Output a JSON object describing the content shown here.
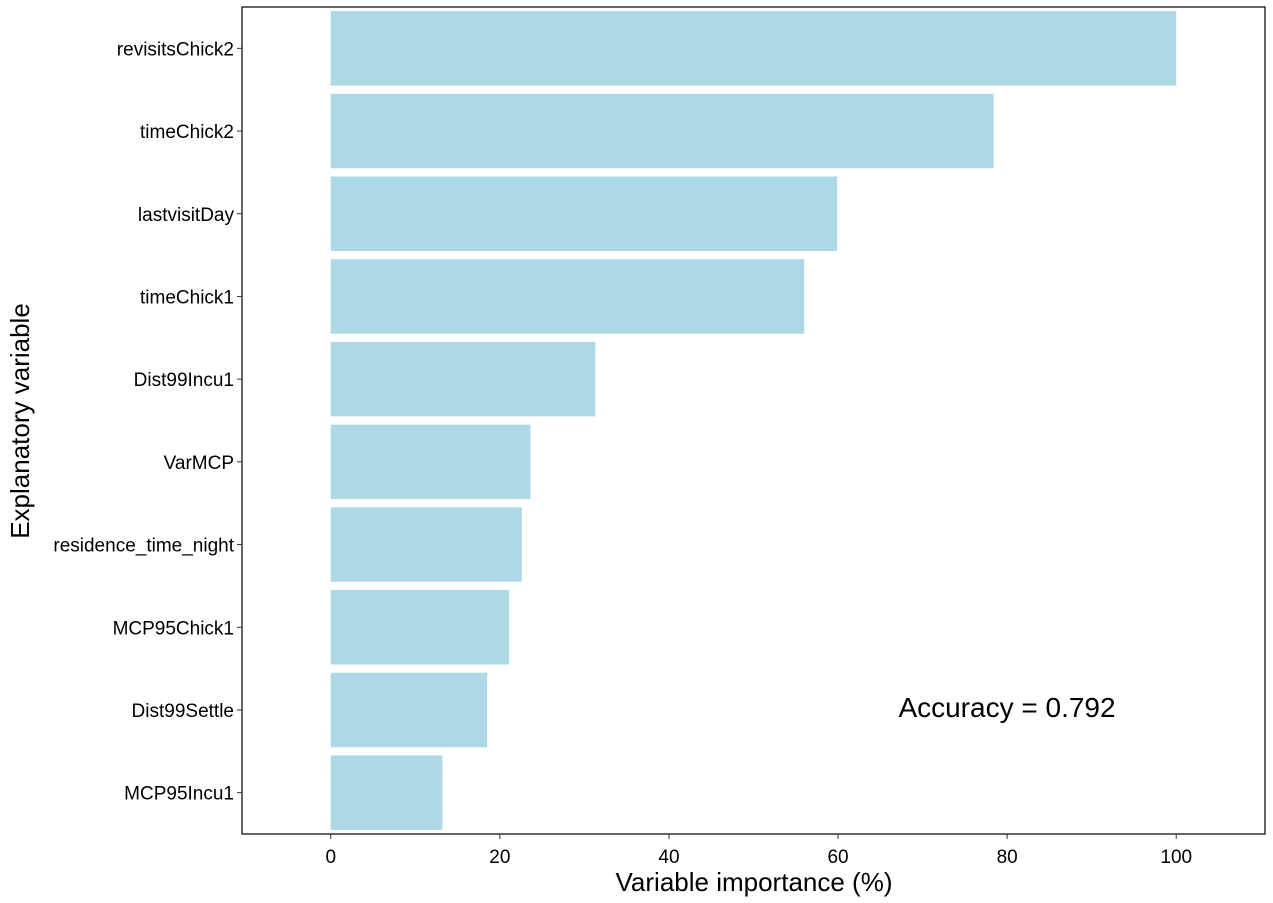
{
  "chart_data": {
    "type": "bar",
    "orientation": "horizontal",
    "categories": [
      "revisitsChick2",
      "timeChick2",
      "lastvisitDay",
      "timeChick1",
      "Dist99Incu1",
      "VarMCP",
      "residence_time_night",
      "MCP95Chick1",
      "Dist99Settle",
      "MCP95Incu1"
    ],
    "values": [
      100,
      78.4,
      59.9,
      56,
      31.3,
      23.6,
      22.6,
      21.1,
      18.5,
      13.2
    ],
    "xlabel": "Variable importance (%)",
    "ylabel": "Explanatory variable",
    "xlim": [
      -10.5,
      110.5
    ],
    "xticks": [
      0,
      20,
      40,
      60,
      80,
      100
    ],
    "grid": false,
    "bar_color": "#add8e6",
    "annotation": "Accuracy =  0.792"
  }
}
